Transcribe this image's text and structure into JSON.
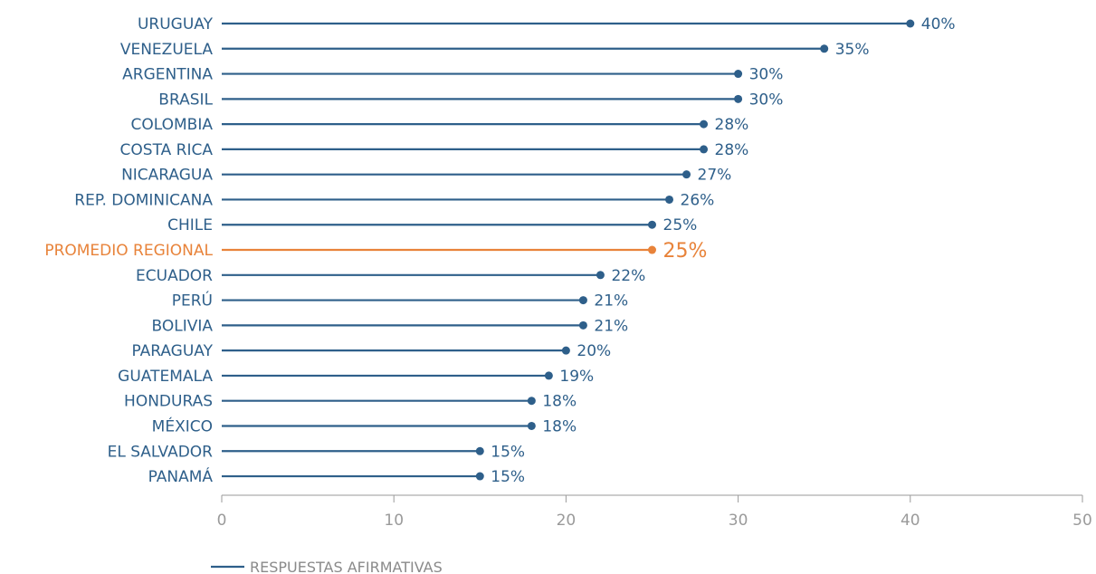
{
  "chart_data": {
    "type": "bar",
    "orientation": "horizontal",
    "style": "lollipop",
    "categories": [
      "URUGUAY",
      "VENEZUELA",
      "ARGENTINA",
      "BRASIL",
      "COLOMBIA",
      "COSTA RICA",
      "NICARAGUA",
      "REP. DOMINICANA",
      "CHILE",
      "PROMEDIO REGIONAL",
      "ECUADOR",
      "PERÚ",
      "BOLIVIA",
      "PARAGUAY",
      "GUATEMALA",
      "HONDURAS",
      "MÉXICO",
      "EL SALVADOR",
      "PANAMÁ"
    ],
    "series": [
      {
        "name": "RESPUESTAS AFIRMATIVAS",
        "values": [
          40,
          35,
          30,
          30,
          28,
          28,
          27,
          26,
          25,
          25,
          22,
          21,
          21,
          20,
          19,
          18,
          18,
          15,
          15
        ],
        "value_labels": [
          "40%",
          "35%",
          "30%",
          "30%",
          "28%",
          "28%",
          "27%",
          "26%",
          "25%",
          "25%",
          "22%",
          "21%",
          "21%",
          "20%",
          "19%",
          "18%",
          "18%",
          "15%",
          "15%"
        ],
        "color": "#2e5f8a"
      }
    ],
    "highlight": {
      "category": "PROMEDIO REGIONAL",
      "color": "#e8833a"
    },
    "xlim": [
      0,
      50
    ],
    "xticks": [
      0,
      10,
      20,
      30,
      40,
      50
    ],
    "xtick_labels": [
      "0",
      "10",
      "20",
      "30",
      "40",
      "50"
    ],
    "title": "",
    "xlabel": "",
    "ylabel": "",
    "grid": false,
    "legend": {
      "position": "bottom-left",
      "entries": [
        "RESPUESTAS AFIRMATIVAS"
      ]
    },
    "colors": {
      "axis": "#9a9a9a",
      "tick_text": "#9a9a9a",
      "legend_text": "#8a8a8a"
    }
  }
}
